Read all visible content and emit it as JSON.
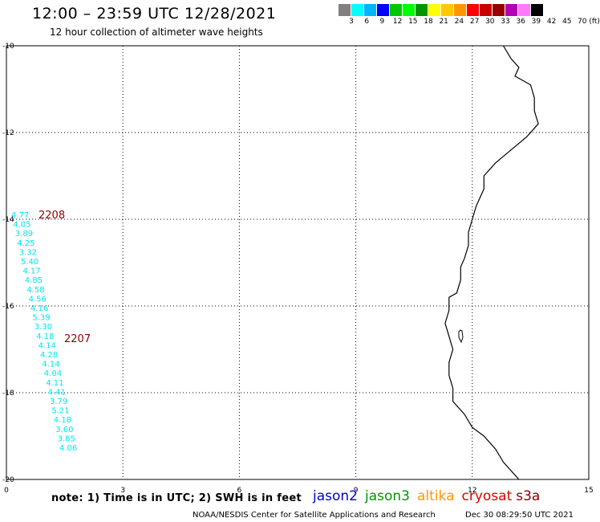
{
  "header": {
    "title": "12:00 – 23:59 UTC 12/28/2021",
    "subtitle": "12 hour collection of altimeter wave heights"
  },
  "colorbar": {
    "colors": [
      "#808080",
      "#00ffff",
      "#00b4ff",
      "#0000ff",
      "#00c800",
      "#00ff00",
      "#009600",
      "#ffff00",
      "#ffc800",
      "#ff9600",
      "#ff0000",
      "#c80000",
      "#960000",
      "#b400b4",
      "#ff78ff",
      "#000000"
    ],
    "labels": [
      "3",
      "6",
      "9",
      "12",
      "15",
      "18",
      "21",
      "24",
      "27",
      "30",
      "33",
      "36",
      "39",
      "42",
      "45",
      "70 (ft)"
    ]
  },
  "map": {
    "xlim": [
      0,
      15
    ],
    "ylim": [
      -20,
      -10
    ],
    "x_ticks": [
      "0",
      "3",
      "6",
      "9",
      "12",
      "15"
    ],
    "y_ticks": [
      "-10",
      "-12",
      "-14",
      "-16",
      "-18",
      "-20"
    ],
    "grid": true,
    "coastline": [
      [
        12.8,
        -10.0
      ],
      [
        13.0,
        -10.3
      ],
      [
        13.2,
        -10.5
      ],
      [
        13.1,
        -10.7
      ],
      [
        13.5,
        -10.9
      ],
      [
        13.6,
        -11.2
      ],
      [
        13.6,
        -11.5
      ],
      [
        13.7,
        -11.8
      ],
      [
        13.4,
        -12.1
      ],
      [
        13.0,
        -12.4
      ],
      [
        12.6,
        -12.7
      ],
      [
        12.3,
        -13.0
      ],
      [
        12.3,
        -13.3
      ],
      [
        12.1,
        -13.7
      ],
      [
        12.0,
        -14.0
      ],
      [
        11.9,
        -14.3
      ],
      [
        11.9,
        -14.6
      ],
      [
        11.8,
        -14.9
      ],
      [
        11.7,
        -15.1
      ],
      [
        11.7,
        -15.4
      ],
      [
        11.6,
        -15.7
      ],
      [
        11.4,
        -15.8
      ],
      [
        11.4,
        -16.1
      ],
      [
        11.3,
        -16.4
      ],
      [
        11.4,
        -16.7
      ],
      [
        11.5,
        -17.0
      ],
      [
        11.4,
        -17.3
      ],
      [
        11.4,
        -17.6
      ],
      [
        11.5,
        -17.9
      ],
      [
        11.5,
        -18.2
      ],
      [
        11.8,
        -18.5
      ],
      [
        12.0,
        -18.8
      ],
      [
        12.3,
        -19.0
      ],
      [
        12.6,
        -19.3
      ],
      [
        12.8,
        -19.6
      ],
      [
        13.0,
        -19.8
      ],
      [
        13.2,
        -20.0
      ]
    ],
    "coast_color": "#000000"
  },
  "tracks": {
    "passes": [
      {
        "label": "2208",
        "color": "#8b0000"
      },
      {
        "label": "2207",
        "color": "#8b0000"
      }
    ],
    "swh_color": "#00e5ee",
    "swh": [
      "4.77",
      "4.05",
      "3.89",
      "4.25",
      "3.32",
      "5.40",
      "4.17",
      "4.85",
      "4.58",
      "4.56",
      "4.16",
      "5.39",
      "3.30",
      "4.18",
      "4.14",
      "4.28",
      "4.14",
      "4.04",
      "4.11",
      "4.41",
      "3.79",
      "5.21",
      "4.18",
      "3.60",
      "3.85",
      "4.06"
    ]
  },
  "footer": {
    "note": "note: 1) Time is in UTC; 2) SWH is in feet",
    "satellites": [
      {
        "name": "jason2",
        "color": "#0000cd"
      },
      {
        "name": "jason3",
        "color": "#009600"
      },
      {
        "name": "altika",
        "color": "#ff9600"
      },
      {
        "name": "cryosat",
        "color": "#e00000"
      },
      {
        "name": "s3a",
        "color": "#8b0000"
      }
    ],
    "credit": "NOAA/NESDIS Center for Satellite Applications and Research",
    "timestamp": "Dec 30 08:29:50 UTC 2021"
  }
}
